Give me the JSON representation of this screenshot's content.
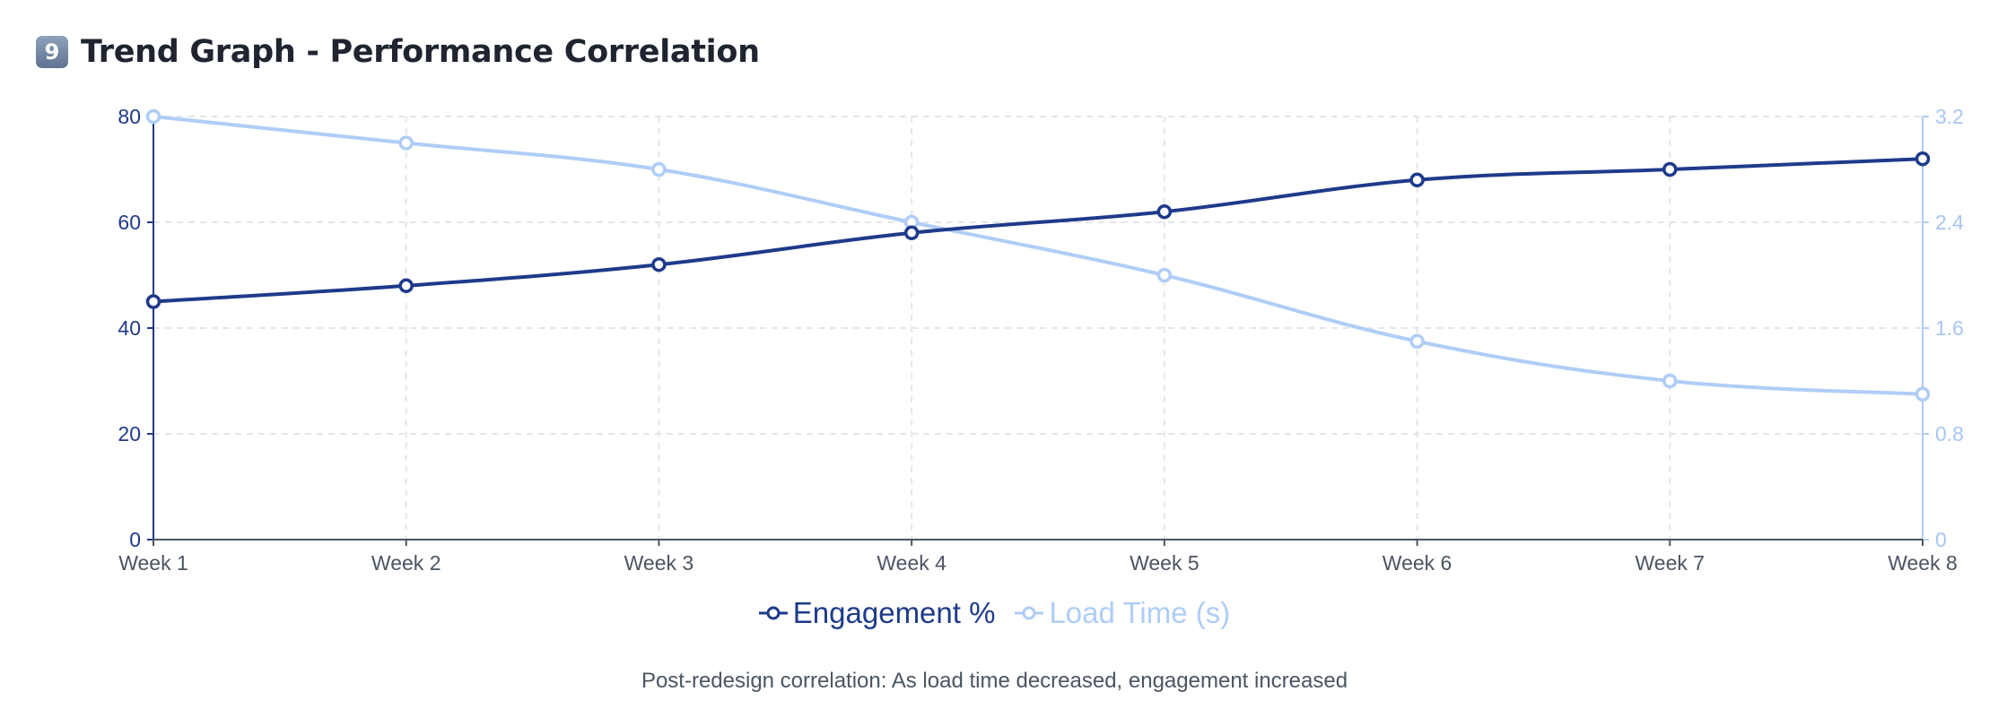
{
  "header": {
    "badge": "9",
    "title": "Trend Graph - Performance Correlation"
  },
  "chart_data": {
    "type": "line",
    "categories": [
      "Week 1",
      "Week 2",
      "Week 3",
      "Week 4",
      "Week 5",
      "Week 6",
      "Week 7",
      "Week 8"
    ],
    "series": [
      {
        "name": "Engagement %",
        "axis": "left",
        "color": "#1e3a8a",
        "values": [
          45,
          48,
          52,
          58,
          62,
          68,
          70,
          72
        ]
      },
      {
        "name": "Load Time (s)",
        "axis": "right",
        "color": "#afcdf6",
        "values": [
          3.2,
          3.0,
          2.8,
          2.4,
          2.0,
          1.5,
          1.2,
          1.1
        ]
      }
    ],
    "y_left": {
      "min": 0,
      "max": 80,
      "ticks": [
        "0",
        "20",
        "40",
        "60",
        "80"
      ]
    },
    "y_right": {
      "min": 0,
      "max": 3.2,
      "ticks": [
        "0",
        "0.8",
        "1.6",
        "2.4",
        "3.2"
      ]
    },
    "grid": true,
    "legend_position": "bottom-center"
  },
  "caption": "Post-redesign correlation: As load time decreased, engagement increased"
}
